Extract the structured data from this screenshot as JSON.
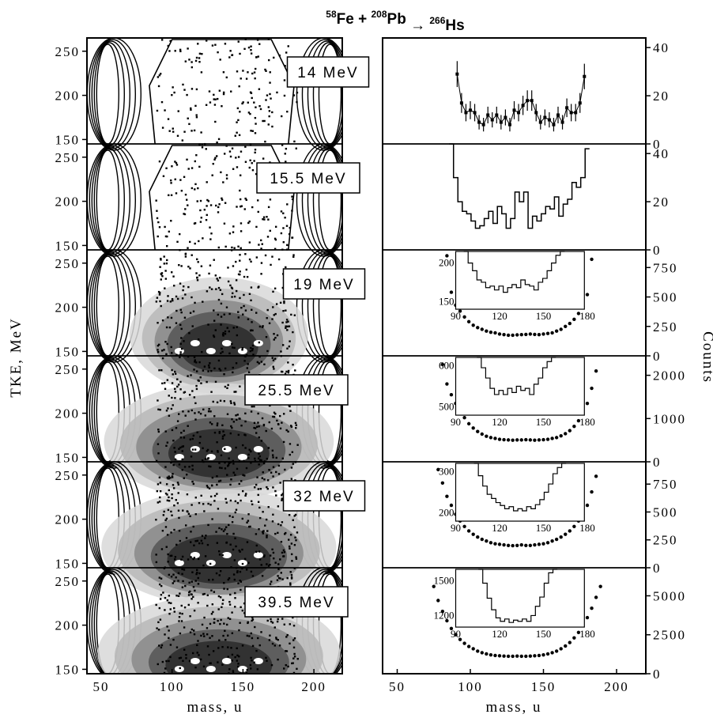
{
  "figure": {
    "title_parts": [
      "58",
      "Fe + ",
      "208",
      "Pb",
      " → ",
      "266",
      "Hs"
    ],
    "left_ylabel": "TKE, MeV",
    "right_ylabel": "Counts",
    "left_xlabel": "mass, u",
    "right_xlabel": "mass, u"
  },
  "chart_data": [
    {
      "type": "heatmap",
      "description_panels": [
        "14 MeV",
        "15.5 MeV",
        "19 MeV",
        "25.5 MeV",
        "32 MeV",
        "39.5 MeV"
      ],
      "xlabel": "mass, u",
      "ylabel": "TKE, MeV",
      "xlim": [
        40,
        220
      ],
      "ylim": [
        145,
        265
      ],
      "x_ticks": [
        "50",
        "100",
        "150",
        "200"
      ],
      "y_ticks": [
        "150",
        "200",
        "250"
      ],
      "panels": [
        {
          "label": "14 MeV",
          "density": 0.35
        },
        {
          "label": "15.5 MeV",
          "density": 0.45
        },
        {
          "label": "19 MeV",
          "density": 0.7
        },
        {
          "label": "25.5 MeV",
          "density": 0.9
        },
        {
          "label": "32 MeV",
          "density": 0.92
        },
        {
          "label": "39.5 MeV",
          "density": 0.95
        }
      ]
    },
    {
      "type": "line",
      "xlabel": "mass, u",
      "ylabel": "Counts",
      "xlim": [
        40,
        220
      ],
      "x_ticks": [
        "50",
        "100",
        "150",
        "200"
      ],
      "panels": [
        {
          "label": "14 MeV",
          "style": "errorbar",
          "yticks": [
            "0",
            "20",
            "40"
          ],
          "ylim": [
            0,
            44
          ],
          "x": [
            91,
            94,
            97,
            100,
            103,
            106,
            109,
            112,
            115,
            118,
            121,
            124,
            127,
            130,
            133,
            136,
            139,
            142,
            145,
            148,
            151,
            154,
            157,
            160,
            163,
            166,
            169,
            172,
            175,
            178
          ],
          "y": [
            29,
            17,
            13,
            14,
            13,
            9,
            8,
            12,
            10,
            12,
            9,
            11,
            8,
            14,
            13,
            16,
            18,
            18,
            13,
            9,
            11,
            10,
            8,
            12,
            9,
            15,
            13,
            13,
            17,
            28
          ]
        },
        {
          "label": "15.5 MeV",
          "style": "step",
          "yticks": [
            "0",
            "20",
            "40"
          ],
          "ylim": [
            0,
            44
          ],
          "x": [
            87,
            90,
            93,
            96,
            99,
            102,
            105,
            108,
            111,
            114,
            117,
            120,
            123,
            126,
            129,
            132,
            135,
            138,
            141,
            144,
            147,
            150,
            153,
            156,
            159,
            162,
            165,
            168,
            171,
            174,
            177,
            180
          ],
          "y": [
            44,
            30,
            20,
            16,
            15,
            12,
            9,
            10,
            13,
            16,
            11,
            18,
            15,
            9,
            13,
            24,
            20,
            24,
            9,
            14,
            12,
            15,
            18,
            17,
            22,
            14,
            19,
            21,
            28,
            26,
            30,
            42
          ]
        },
        {
          "label": "19 MeV",
          "style": "points",
          "yticks": [
            "0",
            "250",
            "500",
            "750"
          ],
          "ylim": [
            0,
            900
          ],
          "x": [
            84,
            87,
            90,
            93,
            96,
            99,
            102,
            105,
            108,
            111,
            114,
            117,
            120,
            123,
            126,
            129,
            132,
            135,
            138,
            141,
            144,
            147,
            150,
            153,
            156,
            159,
            162,
            165,
            168,
            171,
            174,
            177,
            180,
            183
          ],
          "y": [
            850,
            540,
            430,
            380,
            330,
            290,
            260,
            240,
            225,
            210,
            200,
            195,
            185,
            180,
            175,
            175,
            178,
            180,
            182,
            185,
            182,
            180,
            185,
            190,
            195,
            210,
            225,
            250,
            275,
            310,
            360,
            420,
            520,
            820
          ],
          "inset": {
            "xticks": [
              "90",
              "120",
              "150",
              "180"
            ],
            "yticks": [
              "150",
              "200"
            ],
            "ylim": [
              140,
              215
            ],
            "x": [
              97,
              100,
              103,
              106,
              109,
              112,
              115,
              118,
              121,
              124,
              127,
              130,
              133,
              136,
              139,
              142,
              145,
              148,
              151,
              154,
              157,
              160,
              163
            ],
            "y": [
              215,
              200,
              190,
              178,
              175,
              168,
              170,
              165,
              170,
              162,
              168,
              172,
              168,
              178,
              172,
              170,
              165,
              175,
              180,
              190,
              200,
              210,
              215
            ]
          }
        },
        {
          "label": "25.5 MeV",
          "style": "points",
          "yticks": [
            "0",
            "1000",
            "2000"
          ],
          "ylim": [
            0,
            2450
          ],
          "x": [
            81,
            84,
            87,
            90,
            93,
            96,
            99,
            102,
            105,
            108,
            111,
            114,
            117,
            120,
            123,
            126,
            129,
            132,
            135,
            138,
            141,
            144,
            147,
            150,
            153,
            156,
            159,
            162,
            165,
            168,
            171,
            174,
            177,
            180,
            183,
            186
          ],
          "y": [
            2250,
            1800,
            1550,
            1350,
            1180,
            1020,
            880,
            780,
            700,
            640,
            590,
            560,
            540,
            520,
            510,
            505,
            500,
            505,
            505,
            510,
            505,
            500,
            505,
            510,
            520,
            540,
            560,
            600,
            650,
            720,
            820,
            950,
            1120,
            1350,
            1700,
            2100
          ],
          "inset": {
            "xticks": [
              "90",
              "120",
              "150",
              "180"
            ],
            "yticks": [
              "500",
              "600"
            ],
            "ylim": [
              480,
              620
            ],
            "x": [
              106,
              109,
              112,
              115,
              118,
              121,
              124,
              127,
              130,
              133,
              136,
              139,
              142,
              145,
              148,
              151,
              154,
              157
            ],
            "y": [
              620,
              595,
              570,
              545,
              530,
              540,
              530,
              545,
              535,
              550,
              540,
              545,
              530,
              555,
              570,
              595,
              610,
              620
            ]
          }
        },
        {
          "label": "32 MeV",
          "style": "points",
          "yticks": [
            "0",
            "250",
            "500",
            "750"
          ],
          "ylim": [
            0,
            950
          ],
          "x": [
            78,
            81,
            84,
            87,
            90,
            93,
            96,
            99,
            102,
            105,
            108,
            111,
            114,
            117,
            120,
            123,
            126,
            129,
            132,
            135,
            138,
            141,
            144,
            147,
            150,
            153,
            156,
            159,
            162,
            165,
            168,
            171,
            174,
            177,
            180,
            183,
            186
          ],
          "y": [
            880,
            760,
            640,
            560,
            480,
            420,
            370,
            330,
            300,
            275,
            255,
            240,
            225,
            215,
            210,
            205,
            200,
            198,
            200,
            205,
            200,
            200,
            205,
            210,
            215,
            225,
            240,
            255,
            275,
            300,
            330,
            370,
            420,
            480,
            560,
            680,
            820
          ],
          "inset": {
            "xticks": [
              "90",
              "120",
              "150",
              "180"
            ],
            "yticks": [
              "200",
              "300"
            ],
            "ylim": [
              180,
              320
            ],
            "x": [
              104,
              107,
              110,
              113,
              116,
              119,
              122,
              125,
              128,
              131,
              134,
              137,
              140,
              143,
              146,
              149,
              152,
              155,
              158,
              161,
              164
            ],
            "y": [
              320,
              290,
              265,
              245,
              235,
              225,
              218,
              210,
              215,
              205,
              210,
              205,
              215,
              210,
              220,
              232,
              250,
              270,
              295,
              310,
              320
            ]
          }
        },
        {
          "label": "39.5 MeV",
          "style": "points",
          "yticks": [
            "0",
            "2500",
            "5000"
          ],
          "ylim": [
            0,
            6800
          ],
          "x": [
            75,
            78,
            81,
            84,
            87,
            90,
            93,
            96,
            99,
            102,
            105,
            108,
            111,
            114,
            117,
            120,
            123,
            126,
            129,
            132,
            135,
            138,
            141,
            144,
            147,
            150,
            153,
            156,
            159,
            162,
            165,
            168,
            171,
            174,
            177,
            180,
            183,
            186,
            189
          ],
          "y": [
            5600,
            4700,
            4000,
            3400,
            2900,
            2500,
            2200,
            1950,
            1750,
            1600,
            1450,
            1350,
            1270,
            1210,
            1170,
            1150,
            1130,
            1120,
            1120,
            1130,
            1120,
            1120,
            1130,
            1150,
            1170,
            1210,
            1270,
            1350,
            1450,
            1600,
            1780,
            2000,
            2300,
            2650,
            3100,
            3600,
            4200,
            4900,
            5600
          ],
          "inset": {
            "xticks": [
              "90",
              "120",
              "150",
              "180"
            ],
            "yticks": [
              "1200",
              "1500"
            ],
            "ylim": [
              1100,
              1600
            ],
            "x": [
              107,
              110,
              113,
              116,
              119,
              122,
              125,
              128,
              131,
              134,
              137,
              140,
              143,
              146,
              149,
              152,
              155,
              158
            ],
            "y": [
              1600,
              1480,
              1350,
              1250,
              1180,
              1150,
              1170,
              1140,
              1160,
              1150,
              1170,
              1150,
              1200,
              1280,
              1360,
              1480,
              1570,
              1600
            ]
          }
        }
      ]
    }
  ]
}
